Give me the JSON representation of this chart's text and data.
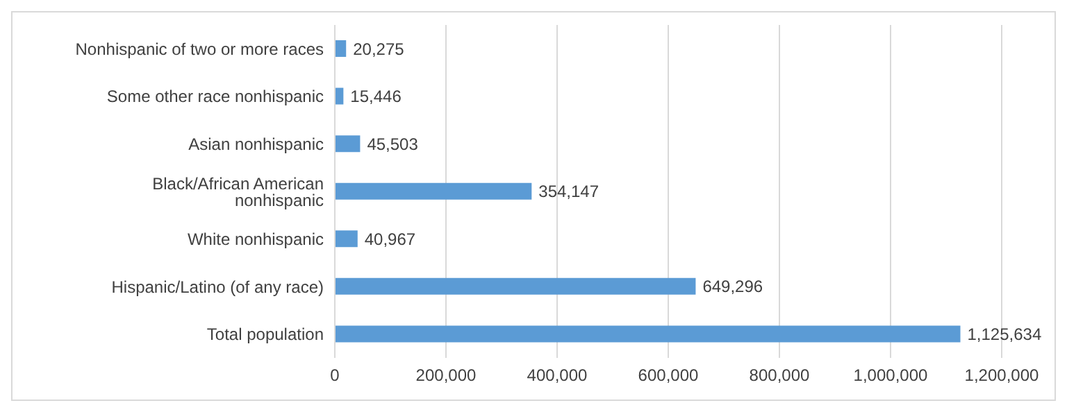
{
  "chart_data": {
    "type": "bar",
    "orientation": "horizontal",
    "categories": [
      "Nonhispanic of two or more races",
      "Some other race nonhispanic",
      "Asian nonhispanic",
      "Black/African American nonhispanic",
      "White nonhispanic",
      "Hispanic/Latino (of any race)",
      "Total population"
    ],
    "values": [
      20275,
      15446,
      45503,
      354147,
      40967,
      649296,
      1125634
    ],
    "value_labels": [
      "20,275",
      "15,446",
      "45,503",
      "354,147",
      "40,967",
      "649,296",
      "1,125,634"
    ],
    "color": "#5b9bd5",
    "xlim": [
      0,
      1200000
    ],
    "xticks": [
      0,
      {
        "value": 200000,
        "label": "200,000"
      },
      {
        "value": 400000,
        "label": "400,000"
      },
      {
        "value": 600000,
        "label": "600,000"
      },
      {
        "value": 800000,
        "label": "800,000"
      },
      {
        "value": 1000000,
        "label": "1,000,000"
      },
      {
        "value": 1200000,
        "label": "1,200,000"
      }
    ],
    "grid": "x",
    "legend": false
  }
}
